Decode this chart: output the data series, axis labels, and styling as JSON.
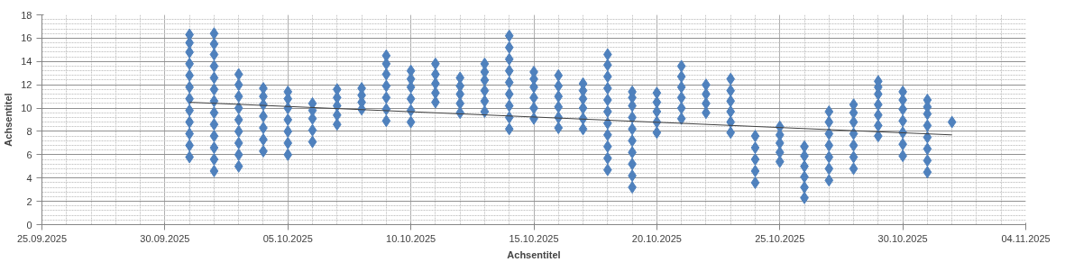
{
  "chart_data": {
    "type": "scatter",
    "xlabel": "Achsentitel",
    "ylabel": "Achsentitel",
    "xlim": [
      "2025-09-25",
      "2025-11-04"
    ],
    "xticks": [
      {
        "value": "2025-09-25",
        "label": "25.09.2025"
      },
      {
        "value": "2025-09-30",
        "label": "30.09.2025"
      },
      {
        "value": "2025-10-05",
        "label": "05.10.2025"
      },
      {
        "value": "2025-10-10",
        "label": "10.10.2025"
      },
      {
        "value": "2025-10-15",
        "label": "15.10.2025"
      },
      {
        "value": "2025-10-20",
        "label": "20.10.2025"
      },
      {
        "value": "2025-10-25",
        "label": "25.10.2025"
      },
      {
        "value": "2025-10-30",
        "label": "30.10.2025"
      },
      {
        "value": "2025-11-04",
        "label": "04.11.2025"
      }
    ],
    "ylim": [
      0,
      18
    ],
    "yticks": [
      0,
      2,
      4,
      6,
      8,
      10,
      12,
      14,
      16,
      18
    ],
    "grid": true,
    "marker": "diamond",
    "series": [
      {
        "color": "#4f81bd",
        "x": [
          "2025-10-01",
          "2025-10-01",
          "2025-10-01",
          "2025-10-01",
          "2025-10-01",
          "2025-10-01",
          "2025-10-01",
          "2025-10-01",
          "2025-10-01",
          "2025-10-01",
          "2025-10-01",
          "2025-10-01",
          "2025-10-02",
          "2025-10-02",
          "2025-10-02",
          "2025-10-02",
          "2025-10-02",
          "2025-10-02",
          "2025-10-02",
          "2025-10-02",
          "2025-10-02",
          "2025-10-02",
          "2025-10-02",
          "2025-10-02",
          "2025-10-02",
          "2025-10-03",
          "2025-10-03",
          "2025-10-03",
          "2025-10-03",
          "2025-10-03",
          "2025-10-03",
          "2025-10-03",
          "2025-10-03",
          "2025-10-03",
          "2025-10-04",
          "2025-10-04",
          "2025-10-04",
          "2025-10-04",
          "2025-10-04",
          "2025-10-04",
          "2025-10-04",
          "2025-10-05",
          "2025-10-05",
          "2025-10-05",
          "2025-10-05",
          "2025-10-05",
          "2025-10-05",
          "2025-10-05",
          "2025-10-06",
          "2025-10-06",
          "2025-10-06",
          "2025-10-06",
          "2025-10-06",
          "2025-10-07",
          "2025-10-07",
          "2025-10-07",
          "2025-10-07",
          "2025-10-07",
          "2025-10-08",
          "2025-10-08",
          "2025-10-08",
          "2025-10-08",
          "2025-10-09",
          "2025-10-09",
          "2025-10-09",
          "2025-10-09",
          "2025-10-09",
          "2025-10-09",
          "2025-10-09",
          "2025-10-10",
          "2025-10-10",
          "2025-10-10",
          "2025-10-10",
          "2025-10-10",
          "2025-10-10",
          "2025-10-11",
          "2025-10-11",
          "2025-10-11",
          "2025-10-11",
          "2025-10-11",
          "2025-10-12",
          "2025-10-12",
          "2025-10-12",
          "2025-10-12",
          "2025-10-12",
          "2025-10-13",
          "2025-10-13",
          "2025-10-13",
          "2025-10-13",
          "2025-10-13",
          "2025-10-13",
          "2025-10-14",
          "2025-10-14",
          "2025-10-14",
          "2025-10-14",
          "2025-10-14",
          "2025-10-14",
          "2025-10-14",
          "2025-10-14",
          "2025-10-14",
          "2025-10-15",
          "2025-10-15",
          "2025-10-15",
          "2025-10-15",
          "2025-10-15",
          "2025-10-15",
          "2025-10-16",
          "2025-10-16",
          "2025-10-16",
          "2025-10-16",
          "2025-10-16",
          "2025-10-16",
          "2025-10-17",
          "2025-10-17",
          "2025-10-17",
          "2025-10-17",
          "2025-10-17",
          "2025-10-17",
          "2025-10-18",
          "2025-10-18",
          "2025-10-18",
          "2025-10-18",
          "2025-10-18",
          "2025-10-18",
          "2025-10-18",
          "2025-10-18",
          "2025-10-18",
          "2025-10-18",
          "2025-10-18",
          "2025-10-19",
          "2025-10-19",
          "2025-10-19",
          "2025-10-19",
          "2025-10-19",
          "2025-10-19",
          "2025-10-19",
          "2025-10-19",
          "2025-10-19",
          "2025-10-19",
          "2025-10-20",
          "2025-10-20",
          "2025-10-20",
          "2025-10-20",
          "2025-10-20",
          "2025-10-21",
          "2025-10-21",
          "2025-10-21",
          "2025-10-21",
          "2025-10-21",
          "2025-10-21",
          "2025-10-22",
          "2025-10-22",
          "2025-10-22",
          "2025-10-22",
          "2025-10-23",
          "2025-10-23",
          "2025-10-23",
          "2025-10-23",
          "2025-10-23",
          "2025-10-23",
          "2025-10-24",
          "2025-10-24",
          "2025-10-24",
          "2025-10-24",
          "2025-10-24",
          "2025-10-25",
          "2025-10-25",
          "2025-10-25",
          "2025-10-25",
          "2025-10-25",
          "2025-10-26",
          "2025-10-26",
          "2025-10-26",
          "2025-10-26",
          "2025-10-26",
          "2025-10-26",
          "2025-10-27",
          "2025-10-27",
          "2025-10-27",
          "2025-10-27",
          "2025-10-27",
          "2025-10-27",
          "2025-10-27",
          "2025-10-28",
          "2025-10-28",
          "2025-10-28",
          "2025-10-28",
          "2025-10-28",
          "2025-10-28",
          "2025-10-28",
          "2025-10-29",
          "2025-10-29",
          "2025-10-29",
          "2025-10-29",
          "2025-10-29",
          "2025-10-29",
          "2025-10-29",
          "2025-10-30",
          "2025-10-30",
          "2025-10-30",
          "2025-10-30",
          "2025-10-30",
          "2025-10-30",
          "2025-10-30",
          "2025-10-31",
          "2025-10-31",
          "2025-10-31",
          "2025-10-31",
          "2025-10-31",
          "2025-10-31",
          "2025-10-31",
          "2025-10-31",
          "2025-11-01"
        ],
        "values": [
          5.8,
          6.8,
          7.8,
          8.8,
          9.8,
          10.8,
          11.8,
          12.8,
          13.8,
          14.8,
          15.6,
          16.3,
          4.6,
          5.6,
          6.6,
          7.6,
          8.6,
          9.6,
          10.6,
          11.6,
          12.6,
          13.6,
          14.6,
          15.5,
          16.4,
          5.0,
          6.0,
          7.0,
          8.0,
          9.0,
          10.0,
          11.0,
          12.0,
          12.9,
          6.3,
          7.3,
          8.3,
          9.3,
          10.3,
          11.0,
          11.7,
          6.0,
          7.0,
          8.0,
          9.0,
          10.0,
          10.8,
          11.4,
          7.1,
          8.1,
          9.1,
          9.8,
          10.4,
          8.6,
          9.4,
          10.2,
          10.9,
          11.6,
          9.9,
          10.5,
          11.1,
          11.7,
          8.9,
          9.9,
          10.9,
          11.9,
          12.9,
          13.8,
          14.5,
          8.8,
          9.8,
          10.8,
          11.8,
          12.5,
          13.2,
          10.5,
          11.3,
          12.1,
          12.9,
          13.8,
          9.6,
          10.4,
          11.2,
          11.9,
          12.6,
          9.7,
          10.6,
          11.5,
          12.4,
          13.1,
          13.8,
          8.2,
          9.2,
          10.2,
          11.2,
          12.2,
          13.2,
          14.2,
          15.2,
          16.2,
          9.1,
          10.0,
          10.9,
          11.8,
          12.5,
          13.1,
          8.3,
          9.2,
          10.1,
          11.0,
          11.9,
          12.8,
          8.2,
          9.1,
          10.0,
          10.8,
          11.5,
          12.1,
          4.7,
          5.7,
          6.7,
          7.7,
          8.7,
          9.7,
          10.7,
          11.7,
          12.7,
          13.7,
          14.6,
          3.2,
          4.2,
          5.2,
          6.2,
          7.2,
          8.2,
          9.2,
          10.2,
          10.9,
          11.4,
          7.9,
          8.8,
          9.7,
          10.5,
          11.3,
          9.1,
          10.0,
          10.9,
          11.8,
          12.7,
          13.6,
          9.6,
          10.4,
          11.2,
          12.0,
          7.9,
          8.8,
          9.7,
          10.6,
          11.5,
          12.5,
          3.6,
          4.6,
          5.6,
          6.6,
          7.6,
          5.4,
          6.2,
          7.0,
          7.7,
          8.4,
          2.3,
          3.2,
          4.1,
          5.0,
          5.9,
          6.7,
          3.8,
          4.8,
          5.8,
          6.8,
          7.8,
          8.8,
          9.7,
          4.8,
          5.8,
          6.8,
          7.8,
          8.8,
          9.6,
          10.3,
          7.6,
          8.5,
          9.4,
          10.3,
          11.2,
          11.8,
          12.3,
          5.9,
          6.9,
          7.9,
          8.9,
          9.9,
          10.7,
          11.4,
          4.5,
          5.5,
          6.5,
          7.5,
          8.5,
          9.5,
          10.1,
          10.7,
          8.8
        ]
      },
      {
        "type": "line",
        "color": "#404040",
        "marker": "none",
        "x": [
          "2025-10-01",
          "2025-11-01"
        ],
        "values": [
          10.5,
          7.7
        ]
      }
    ]
  }
}
